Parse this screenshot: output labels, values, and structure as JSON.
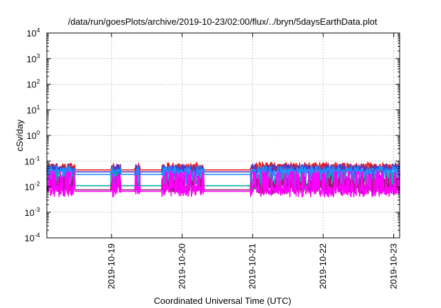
{
  "chart_data": {
    "type": "line",
    "title": "/data/run/goesPlots/archive/2019-10-23/02:00/flux/../bryn/5daysEarthData.plot",
    "xlabel": "Coordinated Universal Time (UTC)",
    "ylabel": "cSv/day",
    "yscale": "log",
    "ylim": [
      0.0001,
      10000
    ],
    "xlim": [
      "2019-10-18 02:00",
      "2019-10-23 02:00"
    ],
    "yticks": [
      {
        "value": 0.0001,
        "base": "10",
        "exp": "-4"
      },
      {
        "value": 0.001,
        "base": "10",
        "exp": "-3"
      },
      {
        "value": 0.01,
        "base": "10",
        "exp": "-2"
      },
      {
        "value": 0.1,
        "base": "10",
        "exp": "-1"
      },
      {
        "value": 1,
        "base": "10",
        "exp": "0"
      },
      {
        "value": 10,
        "base": "10",
        "exp": "1"
      },
      {
        "value": 100,
        "base": "10",
        "exp": "2"
      },
      {
        "value": 1000,
        "base": "10",
        "exp": "3"
      },
      {
        "value": 10000,
        "base": "10",
        "exp": "4"
      }
    ],
    "xticks": [
      {
        "value": "2019-10-19 00:00",
        "label": "2019-10-19"
      },
      {
        "value": "2019-10-20 00:00",
        "label": "2019-10-20"
      },
      {
        "value": "2019-10-21 00:00",
        "label": "2019-10-21"
      },
      {
        "value": "2019-10-22 00:00",
        "label": "2019-10-22"
      },
      {
        "value": "2019-10-23 00:00",
        "label": "2019-10-23"
      }
    ],
    "grid": true,
    "legend": "none",
    "gaps": [
      [
        "2019-10-18 11:30",
        "2019-10-18 23:50"
      ],
      [
        "2019-10-19 03:10",
        "2019-10-19 08:00"
      ],
      [
        "2019-10-19 09:40",
        "2019-10-19 17:10"
      ],
      [
        "2019-10-20 07:20",
        "2019-10-20 23:20"
      ]
    ],
    "series": [
      {
        "color": "#e41a1c",
        "baseline": 0.045,
        "peak": 0.075,
        "dip": 0.04
      },
      {
        "color": "#4a3cc9",
        "baseline": 0.038,
        "peak": 0.065,
        "dip": 0.02
      },
      {
        "color": "#1f8fff",
        "baseline": 0.03,
        "peak": 0.055,
        "dip": 0.012
      },
      {
        "color": "#00b2a0",
        "baseline": 0.011,
        "peak": 0.03,
        "dip": 0.008
      },
      {
        "color": "#9b1b70",
        "baseline": 0.0075,
        "peak": 0.02,
        "dip": 0.006
      },
      {
        "color": "#ff00ff",
        "baseline": 0.0065,
        "peak": 0.035,
        "dip": 0.005
      }
    ]
  }
}
